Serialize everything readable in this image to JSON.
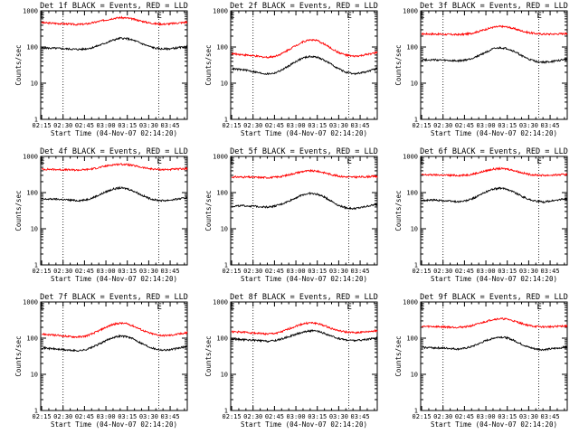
{
  "chart_data": {
    "type": "line",
    "layout": "3x3 grid",
    "yscale": "log",
    "ylim": [
      1,
      1000
    ],
    "y_ticks": [
      "1",
      "10",
      "100",
      "1000"
    ],
    "ylabel": "Counts/sec",
    "xlabel": "Start Time (04-Nov-07 02:14:20)",
    "x_ticks": [
      "02:15",
      "02:30",
      "02:45",
      "03:00",
      "03:15",
      "03:30",
      "03:45"
    ],
    "x_tick_minutes": [
      15,
      30,
      45,
      60,
      75,
      90,
      105
    ],
    "xlim_minutes": [
      14.33,
      117
    ],
    "dotted_lines_minutes": [
      30,
      97
    ],
    "markers": [
      {
        "label": "E",
        "minute": 15.5
      },
      {
        "label": "E",
        "minute": 97.5
      }
    ],
    "series_colors": {
      "events": "#000000",
      "lld": "#ff0000"
    },
    "panels": [
      {
        "title": "Det 1f BLACK = Events, RED = LLD",
        "events": {
          "x": [
            15,
            20,
            25,
            30,
            35,
            40,
            45,
            50,
            55,
            60,
            65,
            70,
            75,
            80,
            85,
            90,
            95,
            100,
            105,
            110,
            115,
            117
          ],
          "y": [
            95,
            93,
            92,
            90,
            88,
            86,
            88,
            95,
            110,
            130,
            155,
            175,
            170,
            150,
            125,
            105,
            92,
            88,
            90,
            95,
            100,
            102
          ]
        },
        "lld": {
          "x": [
            15,
            20,
            25,
            30,
            35,
            40,
            45,
            50,
            55,
            60,
            65,
            70,
            75,
            80,
            85,
            90,
            95,
            100,
            105,
            110,
            115,
            117
          ],
          "y": [
            470,
            460,
            450,
            440,
            430,
            420,
            430,
            460,
            510,
            560,
            620,
            650,
            630,
            580,
            520,
            470,
            440,
            430,
            440,
            460,
            480,
            490
          ]
        }
      },
      {
        "title": "Det 2f BLACK = Events, RED = LLD",
        "events": {
          "x": [
            15,
            20,
            25,
            30,
            35,
            40,
            45,
            50,
            55,
            60,
            65,
            70,
            75,
            80,
            85,
            90,
            95,
            100,
            105,
            110,
            115,
            117
          ],
          "y": [
            25,
            24,
            23,
            21,
            19,
            18,
            19,
            23,
            30,
            40,
            50,
            55,
            52,
            43,
            33,
            25,
            20,
            18,
            19,
            21,
            24,
            26
          ]
        },
        "lld": {
          "x": [
            15,
            20,
            25,
            30,
            35,
            40,
            45,
            50,
            55,
            60,
            65,
            70,
            75,
            80,
            85,
            90,
            95,
            100,
            105,
            110,
            115,
            117
          ],
          "y": [
            65,
            63,
            60,
            57,
            54,
            52,
            55,
            65,
            85,
            110,
            140,
            160,
            150,
            120,
            90,
            70,
            60,
            55,
            57,
            62,
            68,
            70
          ]
        }
      },
      {
        "title": "Det 3f BLACK = Events, RED = LLD",
        "events": {
          "x": [
            15,
            20,
            25,
            30,
            35,
            40,
            45,
            50,
            55,
            60,
            65,
            70,
            75,
            80,
            85,
            90,
            95,
            100,
            105,
            110,
            115,
            117
          ],
          "y": [
            45,
            44,
            44,
            43,
            42,
            41,
            43,
            48,
            58,
            72,
            88,
            95,
            90,
            75,
            58,
            46,
            40,
            38,
            39,
            42,
            45,
            46
          ]
        },
        "lld": {
          "x": [
            15,
            20,
            25,
            30,
            35,
            40,
            45,
            50,
            55,
            60,
            65,
            70,
            75,
            80,
            85,
            90,
            95,
            100,
            105,
            110,
            115,
            117
          ],
          "y": [
            230,
            230,
            228,
            225,
            222,
            220,
            225,
            240,
            270,
            310,
            350,
            370,
            360,
            320,
            280,
            250,
            235,
            228,
            228,
            230,
            235,
            238
          ]
        }
      },
      {
        "title": "Det 4f BLACK = Events, RED = LLD",
        "events": {
          "x": [
            15,
            20,
            25,
            30,
            35,
            40,
            45,
            50,
            55,
            60,
            65,
            70,
            75,
            80,
            85,
            90,
            95,
            100,
            105,
            110,
            115,
            117
          ],
          "y": [
            65,
            66,
            66,
            64,
            62,
            60,
            62,
            70,
            85,
            105,
            125,
            135,
            128,
            108,
            85,
            70,
            62,
            60,
            62,
            66,
            70,
            72
          ]
        },
        "lld": {
          "x": [
            15,
            20,
            25,
            30,
            35,
            40,
            45,
            50,
            55,
            60,
            65,
            70,
            75,
            80,
            85,
            90,
            95,
            100,
            105,
            110,
            115,
            117
          ],
          "y": [
            440,
            440,
            435,
            430,
            425,
            420,
            428,
            450,
            490,
            540,
            590,
            610,
            595,
            550,
            500,
            460,
            440,
            432,
            435,
            445,
            455,
            460
          ]
        }
      },
      {
        "title": "Det 5f BLACK = Events, RED = LLD",
        "events": {
          "x": [
            15,
            20,
            25,
            30,
            35,
            40,
            45,
            50,
            55,
            60,
            65,
            70,
            75,
            80,
            85,
            90,
            95,
            100,
            105,
            110,
            115,
            117
          ],
          "y": [
            42,
            43,
            43,
            42,
            41,
            40,
            42,
            48,
            58,
            72,
            88,
            95,
            90,
            75,
            58,
            44,
            38,
            36,
            38,
            42,
            46,
            48
          ]
        },
        "lld": {
          "x": [
            15,
            20,
            25,
            30,
            35,
            40,
            45,
            50,
            55,
            60,
            65,
            70,
            75,
            80,
            85,
            90,
            95,
            100,
            105,
            110,
            115,
            117
          ],
          "y": [
            270,
            270,
            268,
            265,
            262,
            260,
            265,
            280,
            310,
            350,
            385,
            400,
            390,
            355,
            315,
            285,
            272,
            268,
            270,
            275,
            282,
            285
          ]
        }
      },
      {
        "title": "Det 6f BLACK = Events, RED = LLD",
        "events": {
          "x": [
            15,
            20,
            25,
            30,
            35,
            40,
            45,
            50,
            55,
            60,
            65,
            70,
            75,
            80,
            85,
            90,
            95,
            100,
            105,
            110,
            115,
            117
          ],
          "y": [
            60,
            62,
            62,
            60,
            58,
            56,
            58,
            66,
            82,
            105,
            125,
            132,
            125,
            102,
            80,
            65,
            58,
            55,
            58,
            62,
            66,
            68
          ]
        },
        "lld": {
          "x": [
            15,
            20,
            25,
            30,
            35,
            40,
            45,
            50,
            55,
            60,
            65,
            70,
            75,
            80,
            85,
            90,
            95,
            100,
            105,
            110,
            115,
            117
          ],
          "y": [
            310,
            310,
            308,
            305,
            300,
            298,
            302,
            320,
            355,
            400,
            445,
            460,
            450,
            405,
            355,
            320,
            305,
            300,
            302,
            308,
            315,
            318
          ]
        }
      },
      {
        "title": "Det 7f BLACK = Events, RED = LLD",
        "events": {
          "x": [
            15,
            20,
            25,
            30,
            35,
            40,
            45,
            50,
            55,
            60,
            65,
            70,
            75,
            80,
            85,
            90,
            95,
            100,
            105,
            110,
            115,
            117
          ],
          "y": [
            55,
            52,
            50,
            48,
            46,
            45,
            47,
            55,
            68,
            85,
            105,
            115,
            110,
            92,
            72,
            58,
            50,
            47,
            48,
            52,
            57,
            60
          ]
        },
        "lld": {
          "x": [
            15,
            20,
            25,
            30,
            35,
            40,
            45,
            50,
            55,
            60,
            65,
            70,
            75,
            80,
            85,
            90,
            95,
            100,
            105,
            110,
            115,
            117
          ],
          "y": [
            130,
            125,
            120,
            115,
            110,
            108,
            112,
            130,
            160,
            200,
            240,
            260,
            250,
            210,
            170,
            140,
            125,
            118,
            120,
            128,
            138,
            142
          ]
        }
      },
      {
        "title": "Det 8f BLACK = Events, RED = LLD",
        "events": {
          "x": [
            15,
            20,
            25,
            30,
            35,
            40,
            45,
            50,
            55,
            60,
            65,
            70,
            75,
            80,
            85,
            90,
            95,
            100,
            105,
            110,
            115,
            117
          ],
          "y": [
            95,
            92,
            90,
            88,
            85,
            82,
            85,
            95,
            110,
            128,
            148,
            160,
            155,
            135,
            112,
            98,
            90,
            86,
            88,
            92,
            98,
            100
          ]
        },
        "lld": {
          "x": [
            15,
            20,
            25,
            30,
            35,
            40,
            45,
            50,
            55,
            60,
            65,
            70,
            75,
            80,
            85,
            90,
            95,
            100,
            105,
            110,
            115,
            117
          ],
          "y": [
            150,
            148,
            145,
            140,
            135,
            130,
            135,
            150,
            180,
            215,
            250,
            265,
            255,
            220,
            185,
            160,
            148,
            142,
            145,
            150,
            158,
            162
          ]
        }
      },
      {
        "title": "Det 9f BLACK = Events, RED = LLD",
        "events": {
          "x": [
            15,
            20,
            25,
            30,
            35,
            40,
            45,
            50,
            55,
            60,
            65,
            70,
            75,
            80,
            85,
            90,
            95,
            100,
            105,
            110,
            115,
            117
          ],
          "y": [
            55,
            55,
            54,
            53,
            52,
            50,
            52,
            58,
            70,
            85,
            100,
            108,
            102,
            85,
            68,
            56,
            50,
            48,
            50,
            53,
            56,
            58
          ]
        },
        "lld": {
          "x": [
            15,
            20,
            25,
            30,
            35,
            40,
            45,
            50,
            55,
            60,
            65,
            70,
            75,
            80,
            85,
            90,
            95,
            100,
            105,
            110,
            115,
            117
          ],
          "y": [
            210,
            210,
            208,
            205,
            202,
            200,
            205,
            220,
            250,
            290,
            330,
            345,
            335,
            295,
            255,
            225,
            210,
            205,
            207,
            212,
            218,
            220
          ]
        }
      }
    ]
  }
}
